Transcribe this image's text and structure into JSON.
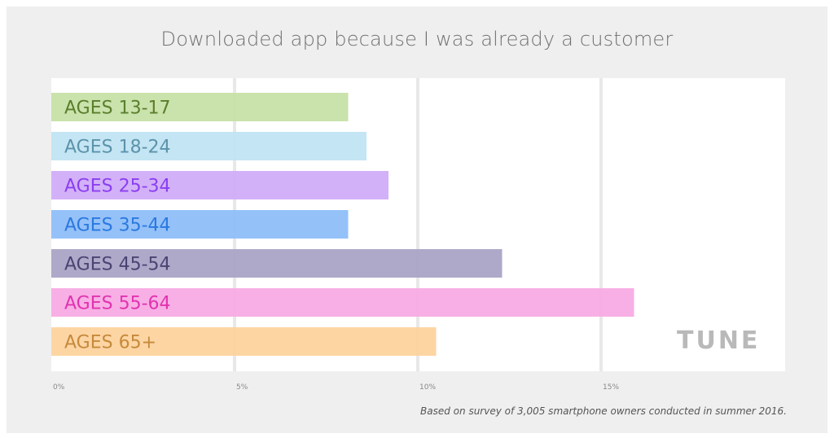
{
  "chart_data": {
    "type": "bar",
    "orientation": "horizontal",
    "title": "Downloaded app because I was already a customer",
    "categories": [
      "AGES 13-17",
      "AGES 18-24",
      "AGES 25-34",
      "AGES 35-44",
      "AGES 45-54",
      "AGES 55-64",
      "AGES 65+"
    ],
    "values": [
      8.1,
      8.6,
      9.2,
      8.1,
      12.3,
      15.9,
      10.5
    ],
    "xlim": [
      0,
      20
    ],
    "xticks": [
      0,
      5,
      10,
      15
    ],
    "xtick_labels": [
      "0%",
      "5%",
      "10%",
      "15%"
    ],
    "grid": true,
    "bar_colors": [
      "#c5e0a4",
      "#bfe3f2",
      "#cfaaf7",
      "#8cbcf8",
      "#a7a2c4",
      "#f7a8e3",
      "#fcd19b"
    ],
    "label_colors": [
      "#5a7f2c",
      "#5c93ab",
      "#8a3ff0",
      "#2a79df",
      "#4a4473",
      "#e133b0",
      "#c7893b"
    ],
    "footnote": "Based on survey of 3,005 smartphone owners conducted in summer 2016.",
    "logo_text": "TUNE"
  }
}
